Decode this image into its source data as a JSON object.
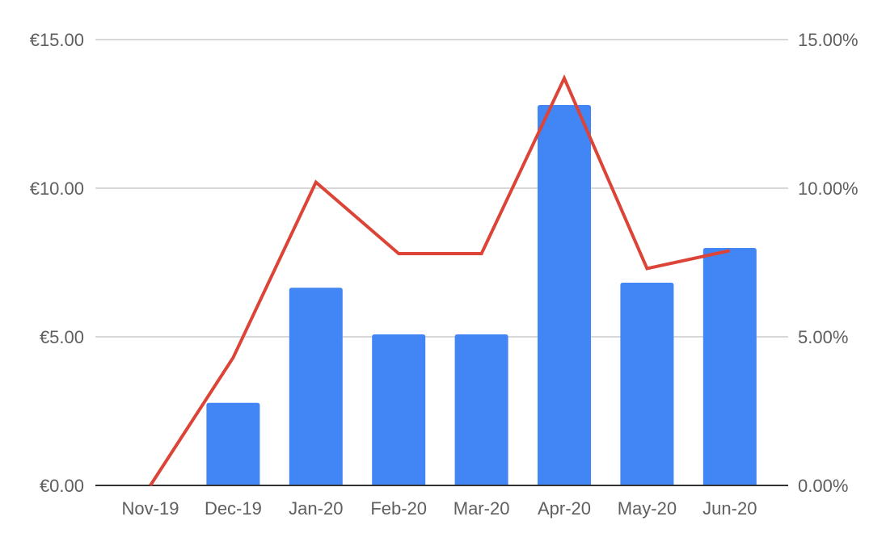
{
  "chart_data": {
    "type": "bar",
    "categories": [
      "Nov-19",
      "Dec-19",
      "Jan-20",
      "Feb-20",
      "Mar-20",
      "Apr-20",
      "May-20",
      "Jun-20"
    ],
    "series": [
      {
        "type": "bar",
        "axis": "left",
        "color": "#4285f4",
        "values": [
          0,
          2.78,
          6.65,
          5.08,
          5.08,
          12.8,
          6.82,
          7.99
        ]
      },
      {
        "type": "line",
        "axis": "right",
        "color": "#db4437",
        "values": [
          0.0,
          4.3,
          10.2,
          7.8,
          7.8,
          13.7,
          7.3,
          7.9
        ]
      }
    ],
    "y_left": {
      "range": [
        0,
        15
      ],
      "ticks": [
        0,
        5,
        10,
        15
      ],
      "tick_labels": [
        "€0.00",
        "€5.00",
        "€10.00",
        "€15.00"
      ]
    },
    "y_right": {
      "range": [
        0,
        15
      ],
      "ticks": [
        0,
        5,
        10,
        15
      ],
      "tick_labels": [
        "0.00%",
        "5.00%",
        "10.00%",
        "15.00%"
      ]
    },
    "title": "",
    "xlabel": "",
    "ylabel": "",
    "grid": true,
    "legend": "none"
  }
}
